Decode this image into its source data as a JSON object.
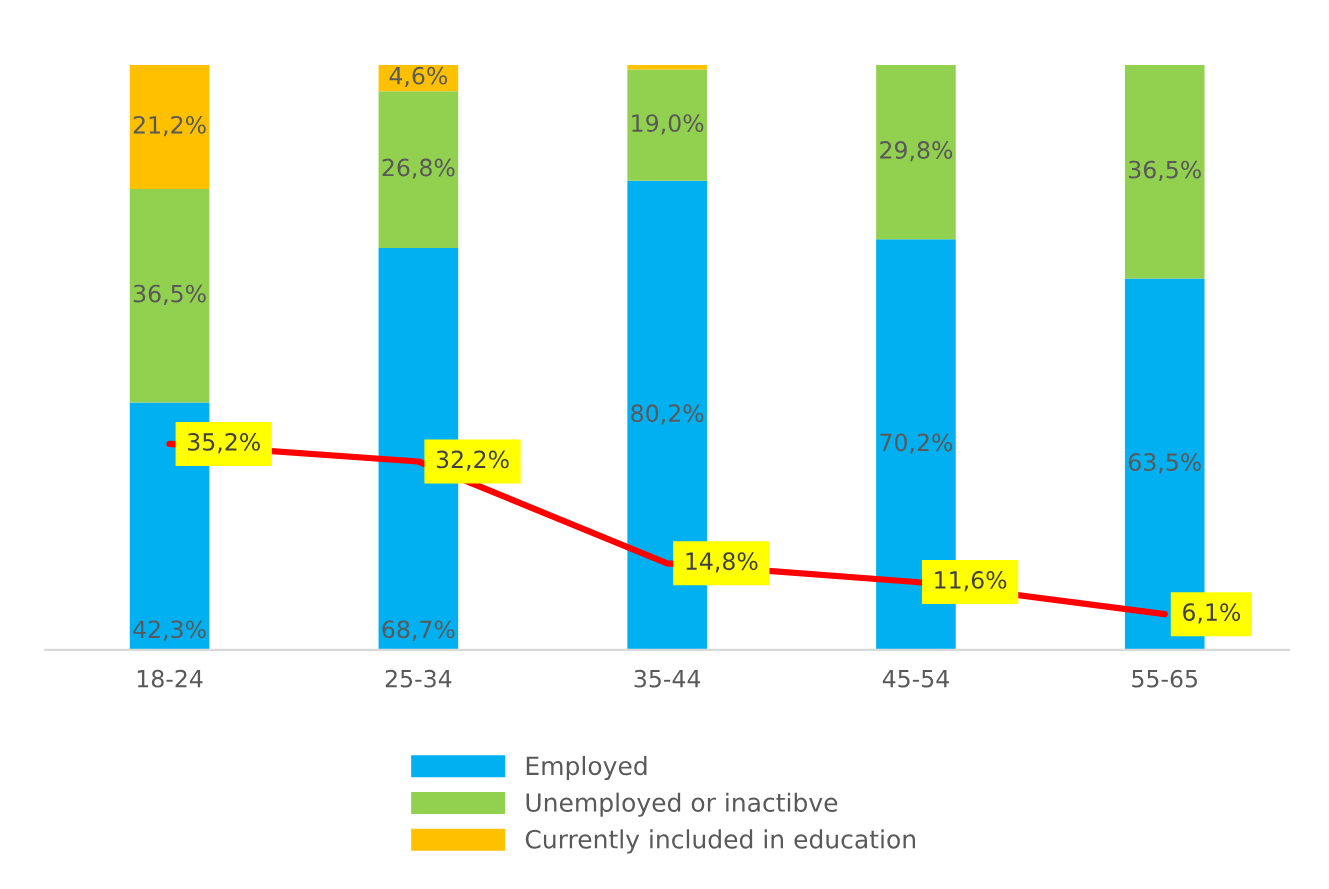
{
  "chart_data": {
    "type": "bar",
    "stacked": true,
    "categories": [
      "18-24",
      "25-34",
      "35-44",
      "45-54",
      "55-65"
    ],
    "ylim": [
      0,
      100
    ],
    "tick_labels": "x",
    "grid": false,
    "legend": "bottom",
    "series": [
      {
        "name": "Employed",
        "color": "#00b0f0",
        "values": [
          42.3,
          68.7,
          80.2,
          70.2,
          63.5
        ],
        "value_labels": [
          "42,3%",
          "68,7%",
          "80,2%",
          "70,2%",
          "63,5%"
        ]
      },
      {
        "name": "Unemployed or inactibve",
        "color": "#92d050",
        "values": [
          36.5,
          26.8,
          19.0,
          29.8,
          36.5
        ],
        "value_labels": [
          "36,5%",
          "26,8%",
          "19,0%",
          "29,8%",
          "36,5%"
        ]
      },
      {
        "name": "Currently included in education",
        "color": "#ffc000",
        "values": [
          21.2,
          4.6,
          0.8,
          0,
          0
        ],
        "value_labels": [
          "21,2%",
          "4,6%",
          null,
          null,
          null
        ]
      },
      {
        "type": "line",
        "color": "#ff0000",
        "values": [
          35.2,
          32.2,
          14.8,
          11.6,
          6.1
        ],
        "value_labels": [
          "35,2%",
          "32,2%",
          "14,8%",
          "11,6%",
          "6,1%"
        ]
      }
    ]
  }
}
